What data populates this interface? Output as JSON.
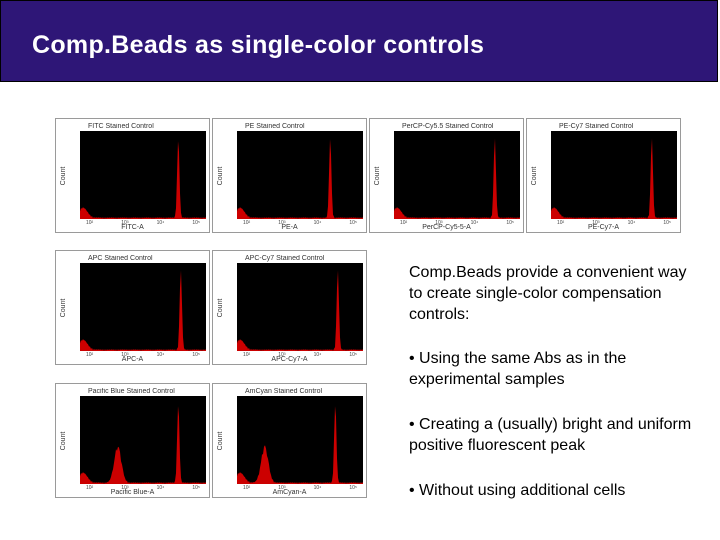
{
  "slide": {
    "title": "Comp.Beads as single-color controls"
  },
  "panels": [
    {
      "title": "FITC Stained Control",
      "xlabel": "FITC-A",
      "ylabel": "Count",
      "peak": 0.78
    },
    {
      "title": "PE Stained Control",
      "xlabel": "PE-A",
      "ylabel": "Count",
      "peak": 0.74
    },
    {
      "title": "PerCP-Cy5.5 Stained Control",
      "xlabel": "PerCP-Cy5-5-A",
      "ylabel": "Count",
      "peak": 0.8
    },
    {
      "title": "PE-Cy7 Stained Control",
      "xlabel": "PE-Cy7-A",
      "ylabel": "Count",
      "peak": 0.8
    },
    {
      "title": "APC Stained Control",
      "xlabel": "APC-A",
      "ylabel": "Count",
      "peak": 0.8
    },
    {
      "title": "APC-Cy7 Stained Control",
      "xlabel": "APC-Cy7-A",
      "ylabel": "Count",
      "peak": 0.8
    },
    {
      "title": "Pacific Blue Stained Control",
      "xlabel": "Pacific Blue-A",
      "ylabel": "Count",
      "peak": 0.78,
      "lowpeak": 0.3
    },
    {
      "title": "AmCyan Stained Control",
      "xlabel": "AmCyan-A",
      "ylabel": "Count",
      "peak": 0.78,
      "lowpeak": 0.22
    }
  ],
  "tick_labels": [
    "10²",
    "10³",
    "10⁴",
    "10⁵"
  ],
  "colors": {
    "title_bg": "#2e1677",
    "histogram": "#cc0000",
    "plot_bg": "#000000"
  },
  "text": {
    "intro": "Comp.Beads provide a convenient way to create single-color compensation controls:",
    "bullet1": "• Using the same Abs as in the experimental samples",
    "bullet2": "• Creating a (usually) bright and uniform positive fluorescent peak",
    "bullet3": "• Without using additional cells"
  }
}
